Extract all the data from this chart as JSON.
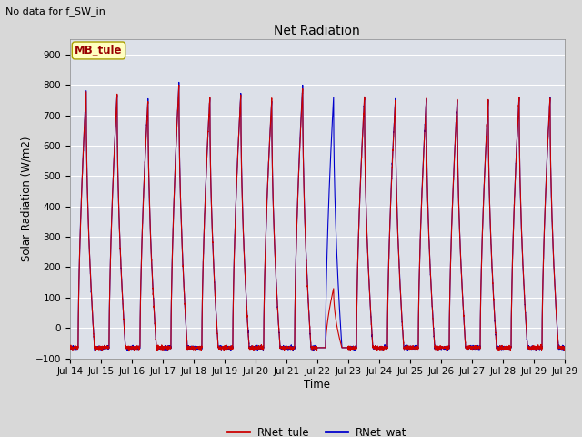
{
  "title": "Net Radiation",
  "xlabel": "Time",
  "ylabel": "Solar Radiation (W/m2)",
  "top_note": "No data for f_SW_in",
  "legend_label_box": "MB_tule",
  "ylim": [
    -100,
    950
  ],
  "series": [
    "RNet_tule",
    "RNet_wat"
  ],
  "colors": [
    "#cc0000",
    "#0000cc"
  ],
  "x_tick_labels": [
    "Jul 14",
    "Jul 15",
    "Jul 16",
    "Jul 17",
    "Jul 18",
    "Jul 19",
    "Jul 20",
    "Jul 21",
    "Jul 22",
    "Jul 23",
    "Jul 24",
    "Jul 25",
    "Jul 26",
    "Jul 27",
    "Jul 28",
    "Jul 29",
    "Jul 29"
  ],
  "fig_bg_color": "#d8d8d8",
  "plot_bg_color": "#dce0e8",
  "yticks": [
    -100,
    0,
    100,
    200,
    300,
    400,
    500,
    600,
    700,
    800,
    900
  ],
  "peaks_tule": [
    780,
    770,
    750,
    800,
    760,
    770,
    750,
    790,
    130,
    760,
    750,
    750,
    750,
    750,
    760,
    760
  ],
  "peaks_wat": [
    780,
    770,
    755,
    805,
    760,
    775,
    750,
    800,
    760,
    760,
    755,
    755,
    755,
    750,
    760,
    760
  ],
  "night_val": -65,
  "pts_per_day": 288,
  "n_days": 16
}
